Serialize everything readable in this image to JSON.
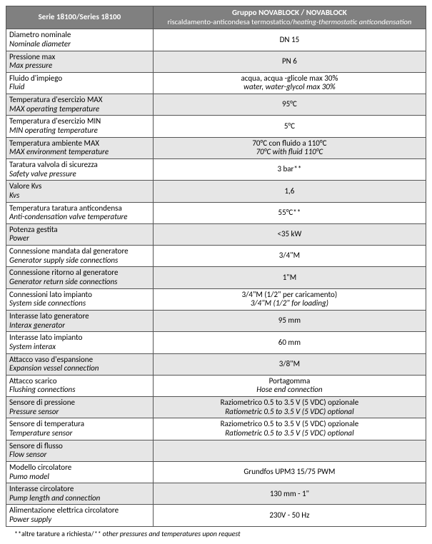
{
  "colors": {
    "header_bg": "#808080",
    "header_fg": "#ffffff",
    "row_alt_bg": "#e6e6e6",
    "row_bg": "#ffffff",
    "border": "#555555"
  },
  "header": {
    "left": "Serie 18100/Series 18100",
    "right_title": "Gruppo NOVABLOCK / NOVABLOCK",
    "right_sub_it": "riscaldamento-anticondesa termostatico/",
    "right_sub_en": "heating-thermostatic anticondensation"
  },
  "rows": [
    {
      "label_it": "Diametro nominale",
      "label_en": "Nominale diameter",
      "value_it": "DN 15",
      "value_en": ""
    },
    {
      "label_it": "Pressione max",
      "label_en": "Max pressure",
      "value_it": "PN 6",
      "value_en": ""
    },
    {
      "label_it": "Fluido d'impiego",
      "label_en": "Fluid",
      "value_it": "acqua, acqua -glicole max 30%",
      "value_en": "water, water-glycol max 30%"
    },
    {
      "label_it": "Temperatura d'esercizio MAX",
      "label_en": "MAX operating temperature",
      "value_it": "95°C",
      "value_en": ""
    },
    {
      "label_it": "Temperatura d'esercizio MIN",
      "label_en": "MIN operating temperature",
      "value_it": "5°C",
      "value_en": ""
    },
    {
      "label_it": "Temperatura ambiente MAX",
      "label_en": "MAX environment temperature",
      "value_it": "70°C con fluido a 110°C",
      "value_en": "70°C with fluid 110°C"
    },
    {
      "label_it": "Taratura valvola di sicurezza",
      "label_en": "Safety valve pressure",
      "value_it": "3 bar**",
      "value_en": ""
    },
    {
      "label_it": "Valore Kvs",
      "label_en": "Kvs",
      "value_it": "1,6",
      "value_en": ""
    },
    {
      "label_it": "Temperatura taratura anticondensa",
      "label_en": "Anti-condensation valve temperature",
      "value_it": "55°C**",
      "value_en": ""
    },
    {
      "label_it": "Potenza gestita",
      "label_en": "Power",
      "value_it": "<35 kW",
      "value_en": ""
    },
    {
      "label_it": "Connessione mandata dal generatore",
      "label_en": "Generator supply side connections",
      "value_it": "3/4\"M",
      "value_en": ""
    },
    {
      "label_it": "Connessione ritorno al generatore",
      "label_en": "Generator return side connections",
      "value_it": "1\"M",
      "value_en": ""
    },
    {
      "label_it": "Connessioni lato impianto",
      "label_en": "System side connections",
      "value_it": "3/4\"M (1/2\" per caricamento)",
      "value_en": "3/4\"M (1/2\" for loading)"
    },
    {
      "label_it": "Interasse lato generatore",
      "label_en": "Interax generator",
      "value_it": "95 mm",
      "value_en": ""
    },
    {
      "label_it": "Interasse lato impianto",
      "label_en": "System interax",
      "value_it": "60 mm",
      "value_en": ""
    },
    {
      "label_it": "Attacco vaso d'espansione",
      "label_en": "Expansion vessel connection",
      "value_it": "3/8\"M",
      "value_en": ""
    },
    {
      "label_it": "Attacco scarico",
      "label_en": "Flushing connections",
      "value_it": "Portagomma",
      "value_en": "Hose end connection"
    },
    {
      "label_it": "Sensore di pressione",
      "label_en": "Pressure sensor",
      "value_it": "Raziometrico 0.5 to 3.5 V (5 VDC) opzionale",
      "value_en": "Ratiometric 0.5 to 3.5 V (5 VDC) optional"
    },
    {
      "label_it": "Sensore di temperatura",
      "label_en": "Temperature sensor",
      "value_it": "Raziometrico 0.5 to 3.5 V (5 VDC) opzionale",
      "value_en": "Ratiometric 0.5 to 3.5 V (5 VDC) optional"
    },
    {
      "label_it": "Sensore di flusso",
      "label_en": "Flow sensor",
      "value_it": "",
      "value_en": ""
    },
    {
      "label_it": "Modello circolatore",
      "label_en": "Pumo model",
      "value_it": "Grundfos UPM3 15/75 PWM",
      "value_en": ""
    },
    {
      "label_it": "Interasse circolatore",
      "label_en": "Pump length and connection",
      "value_it": "130 mm - 1\"",
      "value_en": ""
    },
    {
      "label_it": "Alimentazione elettrica circolatore",
      "label_en": "Power supply",
      "value_it": "230V - 50 Hz",
      "value_en": ""
    }
  ],
  "footnote": {
    "it": "**altre tarature a richiesta/",
    "en": "** other pressures and temperatures upon request"
  }
}
